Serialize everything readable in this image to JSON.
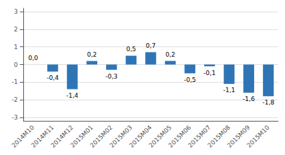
{
  "chart_data": {
    "type": "bar",
    "categories": [
      "2014M10",
      "2014M11",
      "2014M12",
      "2015M01",
      "2015M02",
      "2015M03",
      "2015M04",
      "2015M05",
      "2015M06",
      "2015M07",
      "2015M08",
      "2015M09",
      "2015M10"
    ],
    "values": [
      0.0,
      -0.4,
      -1.4,
      0.2,
      -0.3,
      0.5,
      0.7,
      0.2,
      -0.5,
      -0.1,
      -1.1,
      -1.6,
      -1.8
    ],
    "value_labels": [
      "0,0",
      "-0,4",
      "-1,4",
      "0,2",
      "-0,3",
      "0,5",
      "0,7",
      "0,2",
      "-0,5",
      "-0,1",
      "-1,1",
      "-1,6",
      "-1,8"
    ],
    "color": "#2e75b6",
    "ylim": [
      -3.2,
      3.2
    ],
    "yticks": [
      -3,
      -2,
      -1,
      0,
      1,
      2,
      3
    ],
    "grid": true,
    "data_labels": true
  }
}
